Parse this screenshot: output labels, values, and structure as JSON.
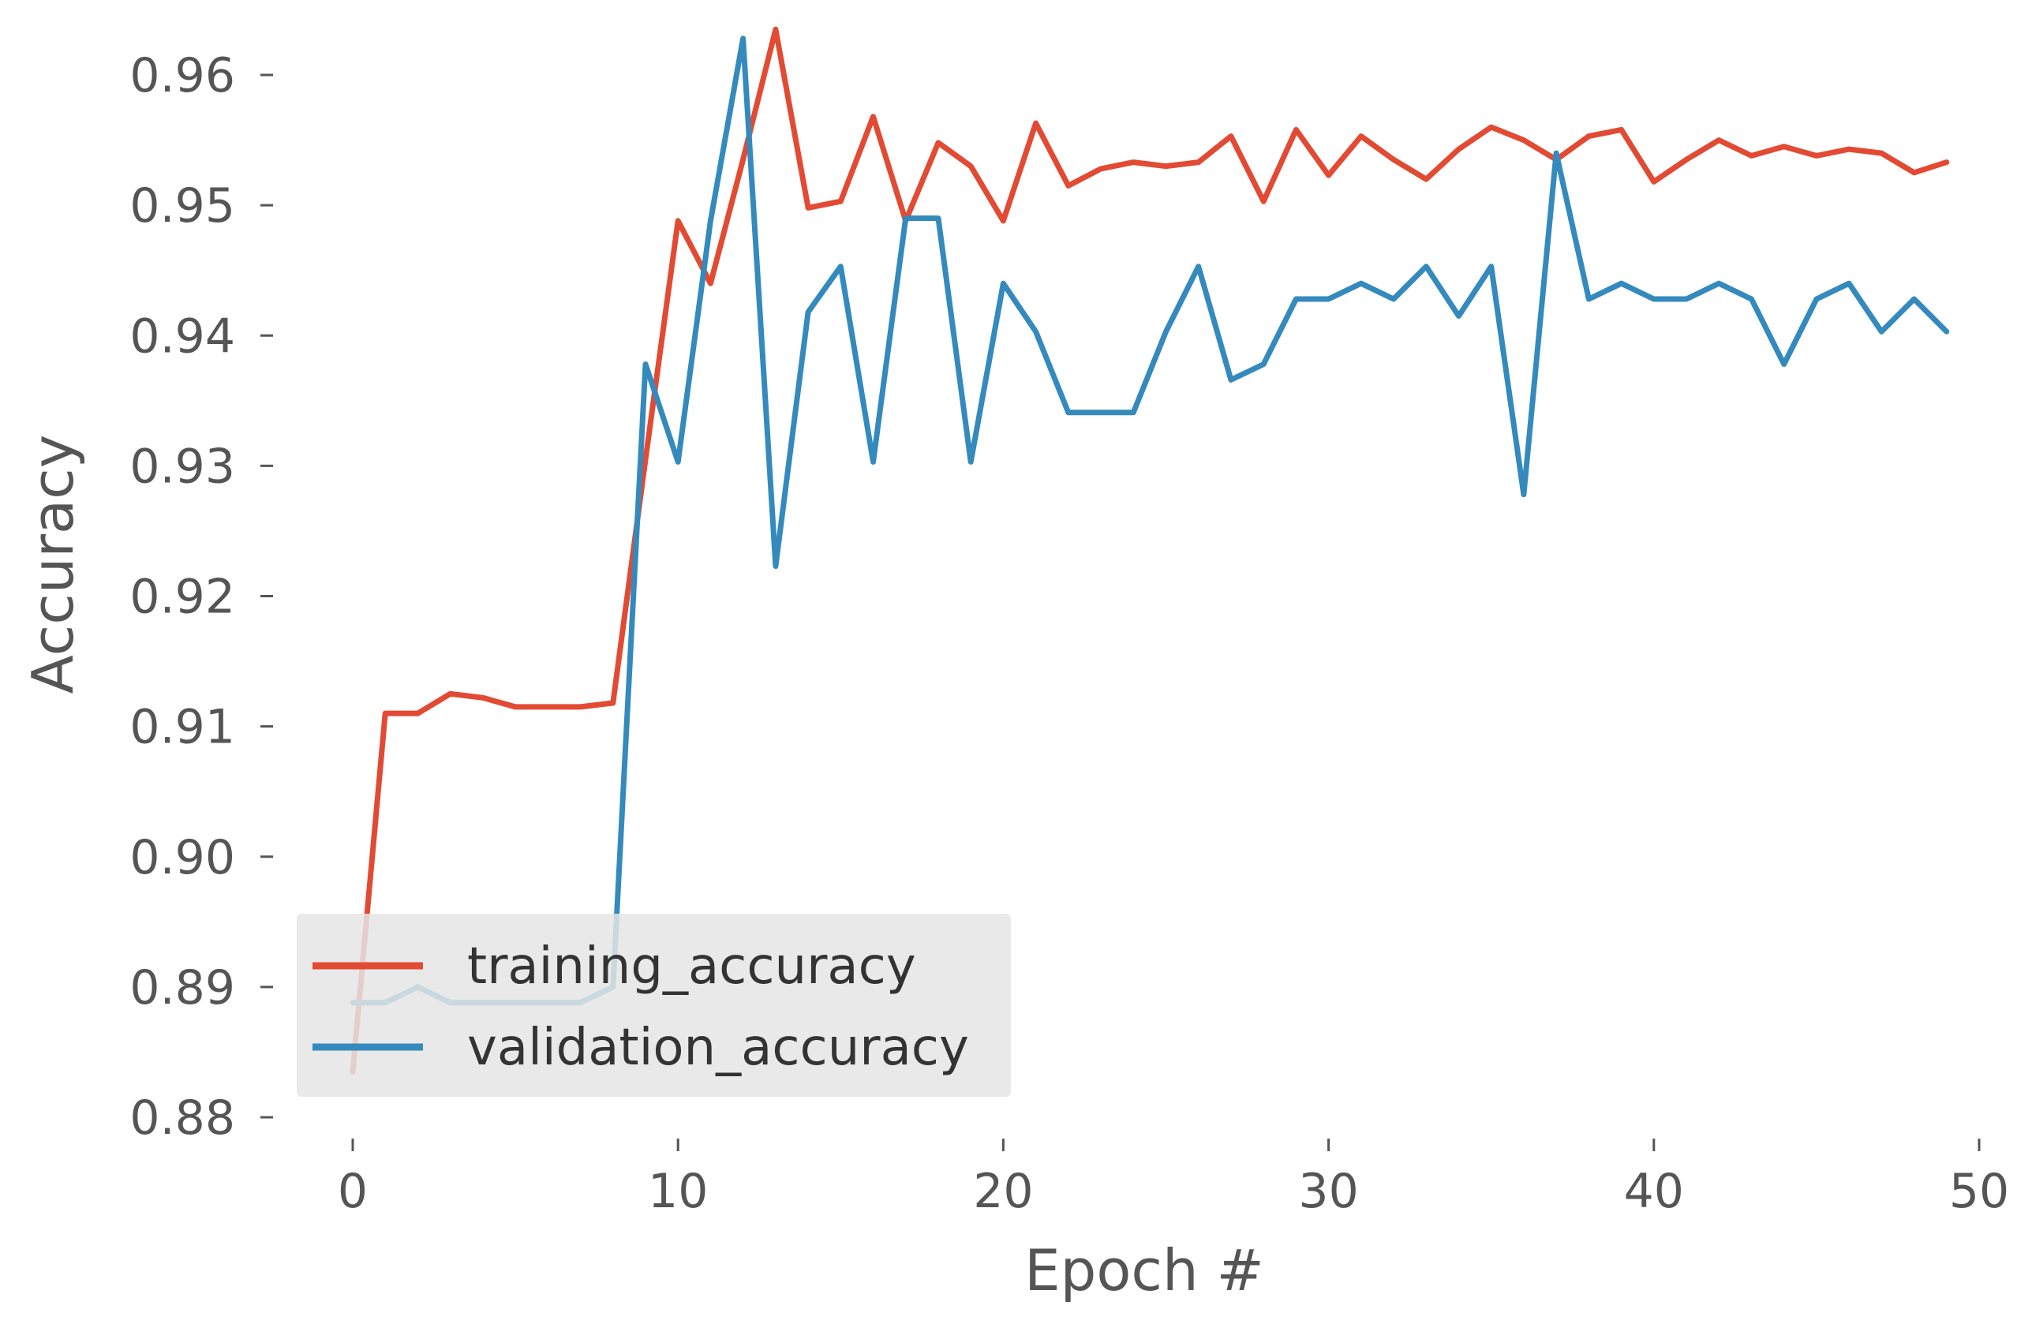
{
  "chart_data": {
    "type": "line",
    "title": "",
    "xlabel": "Epoch #",
    "ylabel": "Accuracy",
    "xlim": [
      -1.5,
      50
    ],
    "ylim": [
      0.88,
      0.963
    ],
    "xticks": [
      "0",
      "10",
      "20",
      "30",
      "40",
      "50"
    ],
    "xtick_values": [
      0,
      10,
      20,
      30,
      40,
      50
    ],
    "yticks": [
      "0.88",
      "0.89",
      "0.90",
      "0.91",
      "0.92",
      "0.93",
      "0.94",
      "0.95",
      "0.96"
    ],
    "ytick_values": [
      0.88,
      0.89,
      0.9,
      0.91,
      0.92,
      0.93,
      0.94,
      0.95,
      0.96
    ],
    "grid": false,
    "legend_position": "lower-left",
    "x": [
      0,
      1,
      2,
      3,
      4,
      5,
      6,
      7,
      8,
      9,
      10,
      11,
      12,
      13,
      14,
      15,
      16,
      17,
      18,
      19,
      20,
      21,
      22,
      23,
      24,
      25,
      26,
      27,
      28,
      29,
      30,
      31,
      32,
      33,
      34,
      35,
      36,
      37,
      38,
      39,
      40,
      41,
      42,
      43,
      44,
      45,
      46,
      47,
      48,
      49
    ],
    "series": [
      {
        "name": "training_accuracy",
        "color": "#E24A33",
        "values": [
          0.8835,
          0.911,
          0.911,
          0.9125,
          0.9122,
          0.9115,
          0.9115,
          0.9115,
          0.9118,
          0.9305,
          0.9488,
          0.944,
          0.9535,
          0.9635,
          0.9498,
          0.9503,
          0.9568,
          0.9488,
          0.9548,
          0.953,
          0.9488,
          0.9563,
          0.9515,
          0.9528,
          0.9533,
          0.953,
          0.9533,
          0.9553,
          0.9503,
          0.9558,
          0.9523,
          0.9553,
          0.9535,
          0.952,
          0.9543,
          0.956,
          0.955,
          0.9535,
          0.9553,
          0.9558,
          0.9518,
          0.9535,
          0.955,
          0.9538,
          0.9545,
          0.9538,
          0.9543,
          0.954,
          0.9525,
          0.9533
        ]
      },
      {
        "name": "validation_accuracy",
        "color": "#348ABD",
        "values": [
          0.8888,
          0.8888,
          0.89,
          0.8888,
          0.8888,
          0.8888,
          0.8888,
          0.8888,
          0.89,
          0.9378,
          0.9303,
          0.9488,
          0.9628,
          0.9223,
          0.9418,
          0.9453,
          0.9303,
          0.949,
          0.949,
          0.9303,
          0.944,
          0.9403,
          0.9341,
          0.9341,
          0.9341,
          0.9403,
          0.9453,
          0.9366,
          0.9378,
          0.9428,
          0.9428,
          0.944,
          0.9428,
          0.9453,
          0.9415,
          0.9453,
          0.9278,
          0.954,
          0.9428,
          0.944,
          0.9428,
          0.9428,
          0.944,
          0.9428,
          0.9378,
          0.9428,
          0.944,
          0.9403,
          0.9428,
          0.9403
        ]
      }
    ]
  }
}
